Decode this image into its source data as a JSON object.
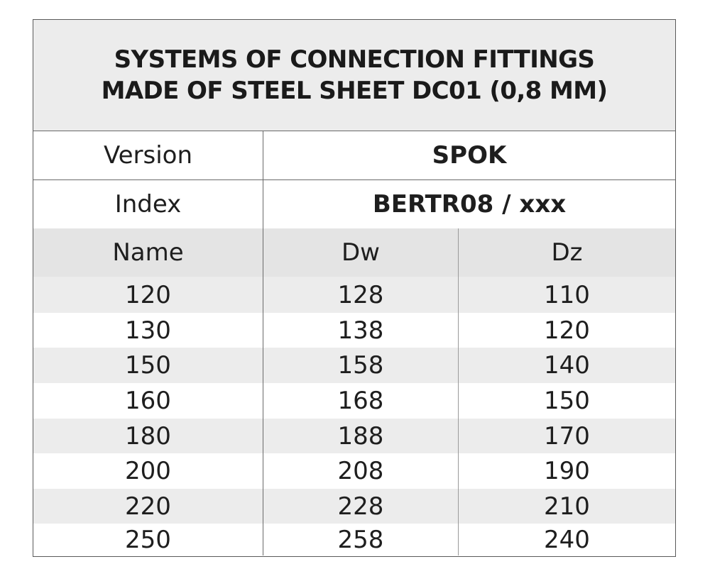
{
  "title": {
    "line1": "SYSTEMS OF CONNECTION FITTINGS",
    "line2": "MADE OF STEEL SHEET DC01 (0,8 MM)"
  },
  "version": {
    "label": "Version",
    "value": "SPOK"
  },
  "index": {
    "label": "Index",
    "value": "BERTR08 / xxx"
  },
  "columns": [
    "Name",
    "Dw",
    "Dz"
  ],
  "rows": [
    [
      "120",
      "128",
      "110"
    ],
    [
      "130",
      "138",
      "120"
    ],
    [
      "150",
      "158",
      "140"
    ],
    [
      "160",
      "168",
      "150"
    ],
    [
      "180",
      "188",
      "170"
    ],
    [
      "200",
      "208",
      "190"
    ],
    [
      "220",
      "228",
      "210"
    ],
    [
      "250",
      "258",
      "240"
    ]
  ],
  "colors": {
    "title_bg": "#ececec",
    "header_bg": "#e4e4e4",
    "stripe_bg": "#ececec",
    "border": "#5a5a5a",
    "text": "#1e1e1e"
  }
}
